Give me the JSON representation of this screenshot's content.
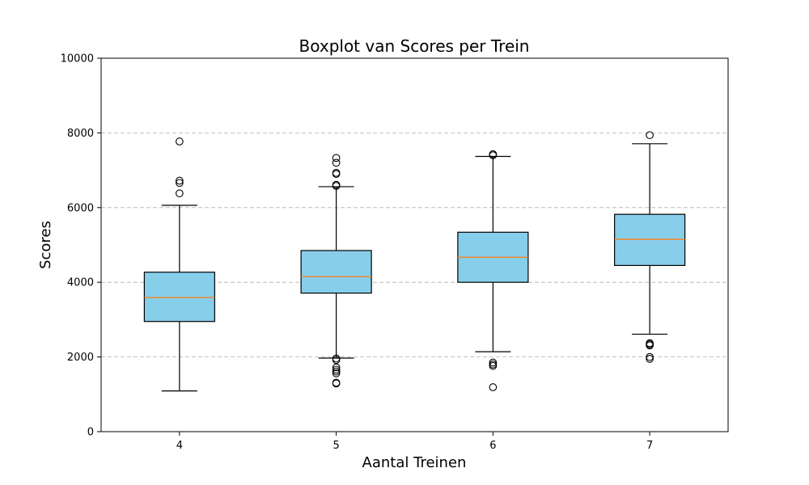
{
  "chart_data": {
    "type": "boxplot",
    "title": "Boxplot van Scores per Trein",
    "xlabel": "Aantal Treinen",
    "ylabel": "Scores",
    "ylim": [
      0,
      10000
    ],
    "yticks": [
      "0",
      "2000",
      "4000",
      "6000",
      "8000",
      "10000"
    ],
    "grid": "y-dashed",
    "box_fill": "#87ceeb",
    "median_color": "#ff7f0e",
    "categories": [
      "4",
      "5",
      "6",
      "7"
    ],
    "boxes": [
      {
        "label": "4",
        "whisker_low": 1090,
        "q1": 2950,
        "median": 3590,
        "q3": 4270,
        "whisker_high": 6060,
        "outliers": [
          6380,
          6660,
          6720,
          7770
        ]
      },
      {
        "label": "5",
        "whisker_low": 1970,
        "q1": 3710,
        "median": 4150,
        "q3": 4850,
        "whisker_high": 6560,
        "outliers": [
          1290,
          1310,
          1560,
          1610,
          1660,
          1720,
          1920,
          1960,
          6580,
          6610,
          6900,
          6930,
          7200,
          7330
        ]
      },
      {
        "label": "6",
        "whisker_low": 2140,
        "q1": 4000,
        "median": 4670,
        "q3": 5340,
        "whisker_high": 7370,
        "outliers": [
          1190,
          1760,
          1800,
          1850,
          7400,
          7430
        ]
      },
      {
        "label": "7",
        "whisker_low": 2610,
        "q1": 4450,
        "median": 5150,
        "q3": 5820,
        "whisker_high": 7710,
        "outliers": [
          1950,
          2000,
          2310,
          2340,
          2370,
          7940
        ]
      }
    ]
  }
}
